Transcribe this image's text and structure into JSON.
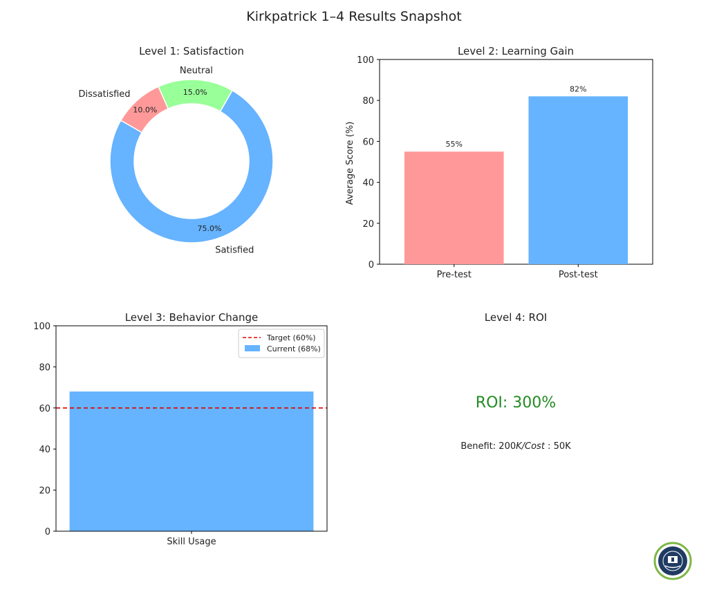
{
  "figure": {
    "title": "Kirkpatrick 1–4 Results Snapshot"
  },
  "chart_data": [
    {
      "type": "pie",
      "title": "Level 1: Satisfaction",
      "variant": "donut",
      "categories": [
        "Satisfied",
        "Neutral",
        "Dissatisfied"
      ],
      "values": [
        75,
        15,
        10
      ],
      "pct_labels": [
        "75.0%",
        "15.0%",
        "10.0%"
      ],
      "colors": [
        "#66b3ff",
        "#99ff99",
        "#ff9999"
      ]
    },
    {
      "type": "bar",
      "title": "Level 2: Learning Gain",
      "categories": [
        "Pre-test",
        "Post-test"
      ],
      "values": [
        55,
        82
      ],
      "value_labels": [
        "55%",
        "82%"
      ],
      "colors": [
        "#ff9999",
        "#66b3ff"
      ],
      "ylabel": "Average Score (%)",
      "ylim": [
        0,
        100
      ],
      "yticks": [
        "0",
        "20",
        "40",
        "60",
        "80",
        "100"
      ]
    },
    {
      "type": "bar",
      "title": "Level 3: Behavior Change",
      "categories": [
        "Skill Usage"
      ],
      "values": [
        68
      ],
      "target": 60,
      "colors": [
        "#66b3ff"
      ],
      "target_color": "#e00000",
      "ylim": [
        0,
        100
      ],
      "yticks": [
        "0",
        "20",
        "40",
        "60",
        "80",
        "100"
      ],
      "legend": {
        "placement": "top-right",
        "entries": [
          "Target (60%)",
          "Current (68%)"
        ]
      }
    },
    {
      "type": "table",
      "title": "Level 4: ROI",
      "roi_text": "ROI: 300%",
      "roi_color": "#228b22",
      "benefit_text": "Benefit: 200",
      "benefit_k": "K",
      "cost_word": "/Cost",
      "cost_text": " : 50K"
    }
  ],
  "logo": {
    "description_icon": "academy-seal-icon"
  }
}
